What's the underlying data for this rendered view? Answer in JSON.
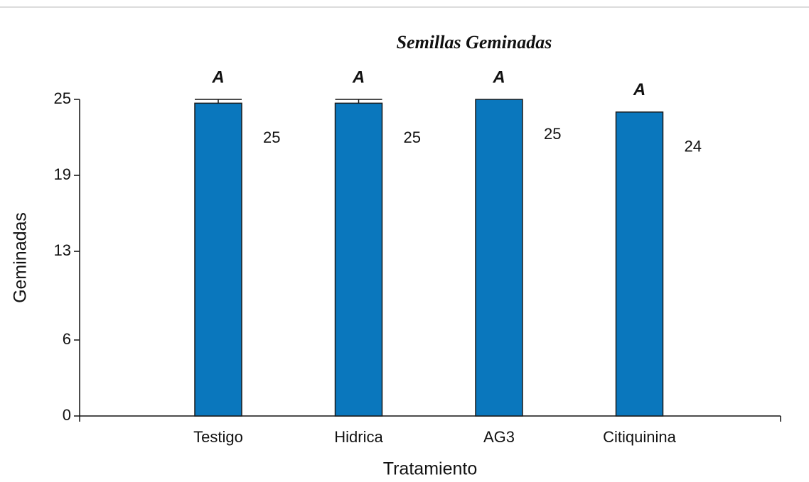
{
  "chart_data": {
    "type": "bar",
    "title": "Semillas Geminadas",
    "xlabel": "Tratamiento",
    "ylabel": "Geminadas",
    "categories": [
      "Testigo",
      "Hidrica",
      "AG3",
      "Citiquinina"
    ],
    "values": [
      24.7,
      24.7,
      25,
      24
    ],
    "errors": [
      0.3,
      0.3,
      null,
      null
    ],
    "value_labels": [
      "25",
      "25",
      "25",
      "24"
    ],
    "letters": [
      "A",
      "A",
      "A",
      "A"
    ],
    "color": "#0a77bd",
    "ylim": [
      0,
      25
    ],
    "yticks": [
      0,
      6,
      13,
      19,
      25
    ]
  }
}
